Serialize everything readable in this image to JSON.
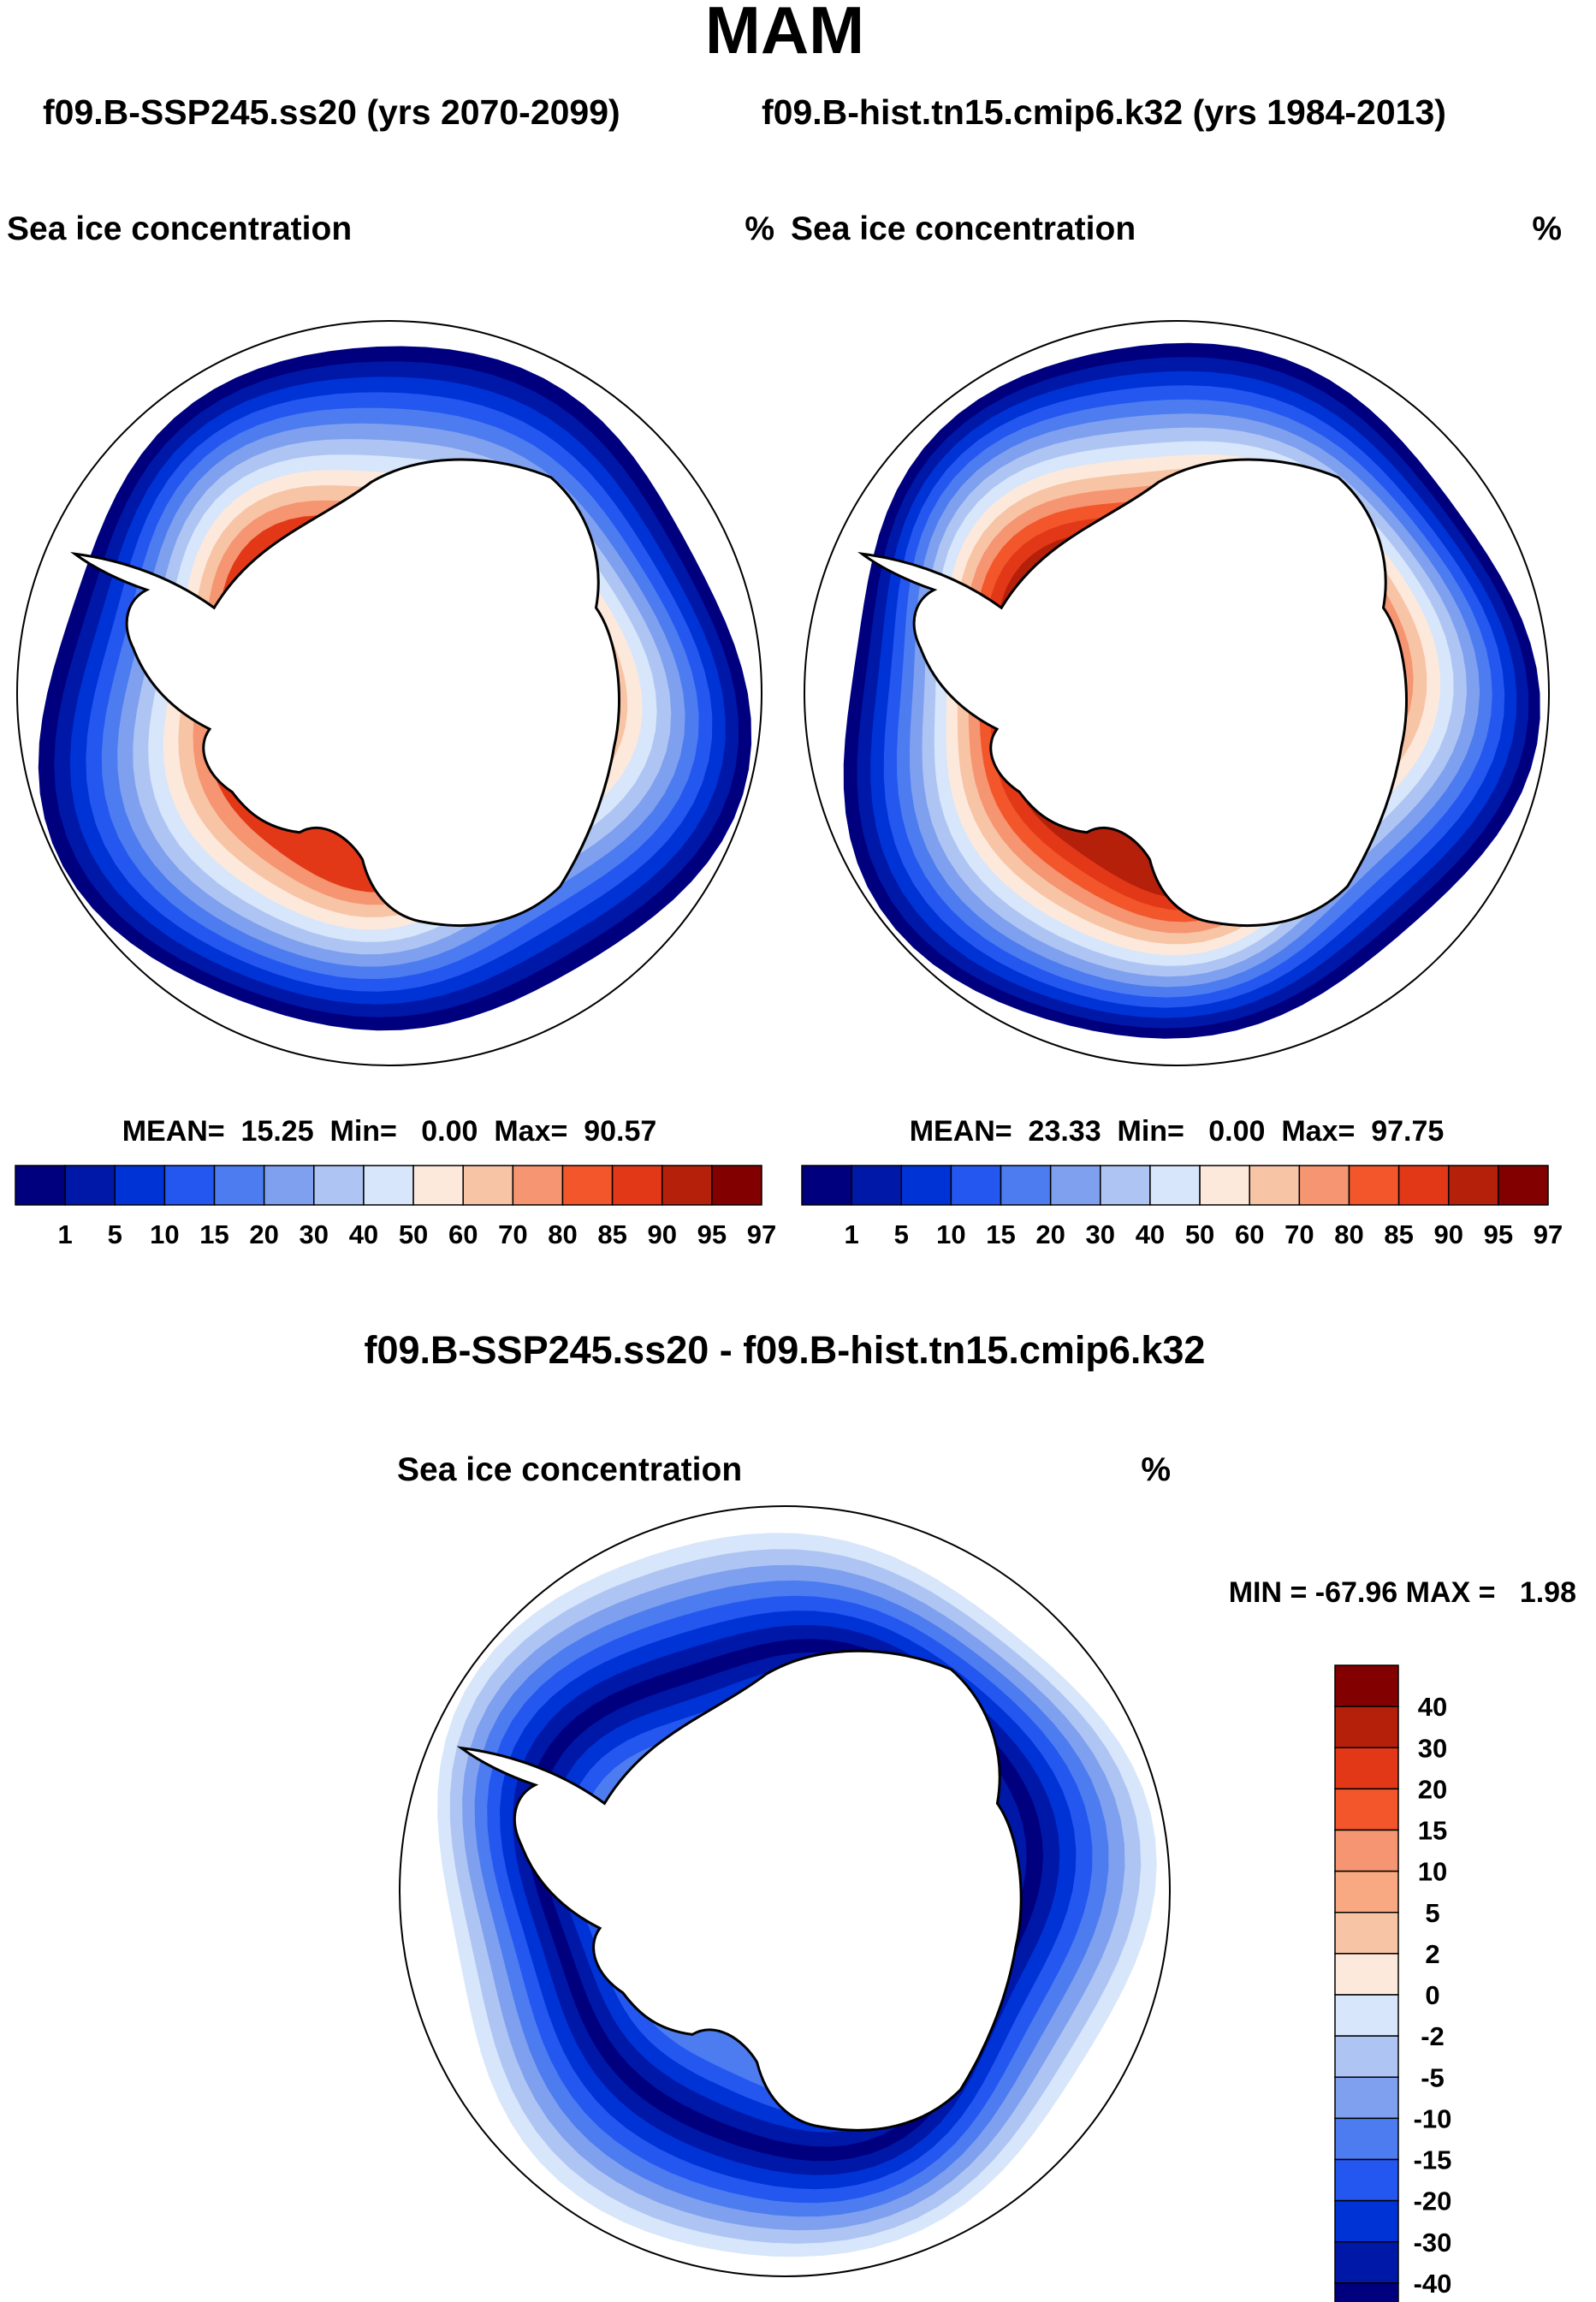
{
  "title": "MAM",
  "subtitle_left": "f09.B-SSP245.ss20 (yrs 2070-2099)",
  "subtitle_right": "f09.B-hist.tn15.cmip6.k32 (yrs 1984-2013)",
  "diff_title": "f09.B-SSP245.ss20 - f09.B-hist.tn15.cmip6.k32",
  "chart_data": [
    {
      "type": "heatmap",
      "projection": "south-polar-stereographic",
      "variable": "Sea ice concentration",
      "units": "%",
      "stats_text": "MEAN=  15.25  Min=   0.00  Max=  90.57",
      "mean": 15.25,
      "min": 0.0,
      "max": 90.57,
      "levels": [
        "1",
        "5",
        "10",
        "15",
        "20",
        "30",
        "40",
        "50",
        "60",
        "70",
        "80",
        "85",
        "90",
        "95",
        "97"
      ],
      "colors": [
        "#00007f",
        "#0018a8",
        "#0033d6",
        "#2457f0",
        "#4d7cf0",
        "#7fa0ee",
        "#aec5f4",
        "#d7e6fa",
        "#fde9dc",
        "#f8c4a6",
        "#f59571",
        "#f2562a",
        "#e23818",
        "#b5200b",
        "#820000"
      ]
    },
    {
      "type": "heatmap",
      "projection": "south-polar-stereographic",
      "variable": "Sea ice concentration",
      "units": "%",
      "stats_text": "MEAN=  23.33  Min=   0.00  Max=  97.75",
      "mean": 23.33,
      "min": 0.0,
      "max": 97.75,
      "levels": [
        "1",
        "5",
        "10",
        "15",
        "20",
        "30",
        "40",
        "50",
        "60",
        "70",
        "80",
        "85",
        "90",
        "95",
        "97"
      ],
      "colors": [
        "#00007f",
        "#0018a8",
        "#0033d6",
        "#2457f0",
        "#4d7cf0",
        "#7fa0ee",
        "#aec5f4",
        "#d7e6fa",
        "#fde9dc",
        "#f8c4a6",
        "#f59571",
        "#f2562a",
        "#e23818",
        "#b5200b",
        "#820000"
      ]
    },
    {
      "type": "heatmap",
      "projection": "south-polar-stereographic",
      "variable": "Sea ice concentration",
      "units": "%",
      "stats_text": "MIN = -67.96 MAX =   1.98",
      "min": -67.96,
      "max": 1.98,
      "levels": [
        "40",
        "30",
        "20",
        "15",
        "10",
        "5",
        "2",
        "0",
        "-2",
        "-5",
        "-10",
        "-15",
        "-20",
        "-30",
        "-40"
      ],
      "colors": [
        "#820000",
        "#b5200b",
        "#e23818",
        "#f2562a",
        "#f59571",
        "#f8a982",
        "#f8c4a6",
        "#fde9dc",
        "#d7e6fa",
        "#aec5f4",
        "#7fa0ee",
        "#4d7cf0",
        "#2457f0",
        "#0033d6",
        "#0018a8",
        "#00007f"
      ]
    }
  ]
}
